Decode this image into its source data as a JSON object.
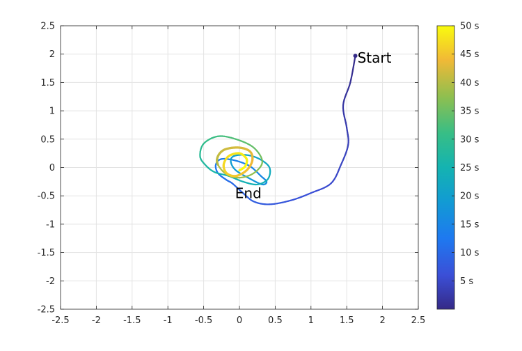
{
  "chart_data": {
    "type": "line",
    "title": "",
    "xlabel": "",
    "ylabel": "",
    "xlim": [
      -2.5,
      2.5
    ],
    "ylim": [
      -2.5,
      2.5
    ],
    "grid": true,
    "x_ticks": [
      "-2.5",
      "-2",
      "-1.5",
      "-1",
      "-0.5",
      "0",
      "0.5",
      "1",
      "1.5",
      "2",
      "2.5"
    ],
    "y_ticks": [
      "2.5",
      "2",
      "1.5",
      "1",
      "0.5",
      "0",
      "-0.5",
      "-1",
      "-1.5",
      "-2",
      "-2.5"
    ],
    "x_tick_values": [
      -2.5,
      -2,
      -1.5,
      -1,
      -0.5,
      0,
      0.5,
      1,
      1.5,
      2,
      2.5
    ],
    "y_tick_values": [
      2.5,
      2,
      1.5,
      1,
      0.5,
      0,
      -0.5,
      -1,
      -1.5,
      -2,
      -2.5
    ],
    "colormap": "parula",
    "colorbar": {
      "position": "right",
      "range": [
        0,
        50
      ],
      "labels": [
        "50 s",
        "45 s",
        "40 s",
        "35 s",
        "30 s",
        "25 s",
        "20 s",
        "15 s",
        "10 s",
        "5 s"
      ],
      "label_values": [
        50,
        45,
        40,
        35,
        30,
        25,
        20,
        15,
        10,
        5
      ]
    },
    "annotations": [
      {
        "text": "Start",
        "x": 1.63,
        "y": 1.97
      },
      {
        "text": "End",
        "x": -0.08,
        "y": -0.42
      }
    ],
    "series": [
      {
        "t": [
          0,
          1,
          2,
          3,
          3.8,
          4.5,
          5.2,
          6,
          6.8,
          7.5,
          8.3,
          9,
          10,
          11,
          12,
          12.6,
          13.2,
          14,
          14.5,
          15.2,
          16,
          17,
          18,
          19,
          19.5,
          20,
          20.7,
          21.5,
          22.5,
          23.5,
          24,
          24.5,
          25,
          26,
          27.2,
          28.5,
          30,
          31.5,
          33,
          34.5,
          36,
          37.5,
          38.5,
          39.3,
          40,
          40.8,
          41.5,
          42.3,
          43,
          43.8,
          44.5,
          45.3,
          46,
          46.8,
          47.5,
          48.3,
          49,
          49.7,
          50
        ],
        "x": [
          1.62,
          1.55,
          1.45,
          1.5,
          1.52,
          1.42,
          1.28,
          1.0,
          0.72,
          0.42,
          0.2,
          0.05,
          -0.1,
          -0.18,
          -0.3,
          -0.33,
          -0.25,
          -0.05,
          0.15,
          0.3,
          0.38,
          0.32,
          0.15,
          -0.05,
          -0.12,
          -0.08,
          0.1,
          0.28,
          0.42,
          0.4,
          0.25,
          0.05,
          -0.15,
          -0.35,
          -0.48,
          -0.55,
          -0.5,
          -0.3,
          -0.05,
          0.2,
          0.32,
          0.2,
          0.0,
          -0.18,
          -0.3,
          -0.3,
          -0.2,
          0.0,
          0.15,
          0.18,
          0.1,
          -0.05,
          -0.18,
          -0.22,
          -0.15,
          0.0,
          0.1,
          0.08,
          0.0
        ],
        "y": [
          1.97,
          1.5,
          1.1,
          0.7,
          0.4,
          0.05,
          -0.28,
          -0.45,
          -0.58,
          -0.65,
          -0.6,
          -0.45,
          -0.28,
          -0.22,
          -0.1,
          0.05,
          0.15,
          0.12,
          0.02,
          -0.15,
          -0.25,
          -0.3,
          -0.2,
          -0.05,
          0.1,
          0.2,
          0.22,
          0.15,
          0.0,
          -0.2,
          -0.3,
          -0.25,
          -0.15,
          -0.08,
          0.05,
          0.2,
          0.42,
          0.55,
          0.5,
          0.35,
          0.1,
          -0.1,
          -0.18,
          -0.12,
          0.05,
          0.2,
          0.32,
          0.35,
          0.28,
          0.12,
          -0.05,
          -0.15,
          -0.1,
          0.05,
          0.2,
          0.25,
          0.15,
          0.02,
          -0.05
        ]
      }
    ]
  }
}
